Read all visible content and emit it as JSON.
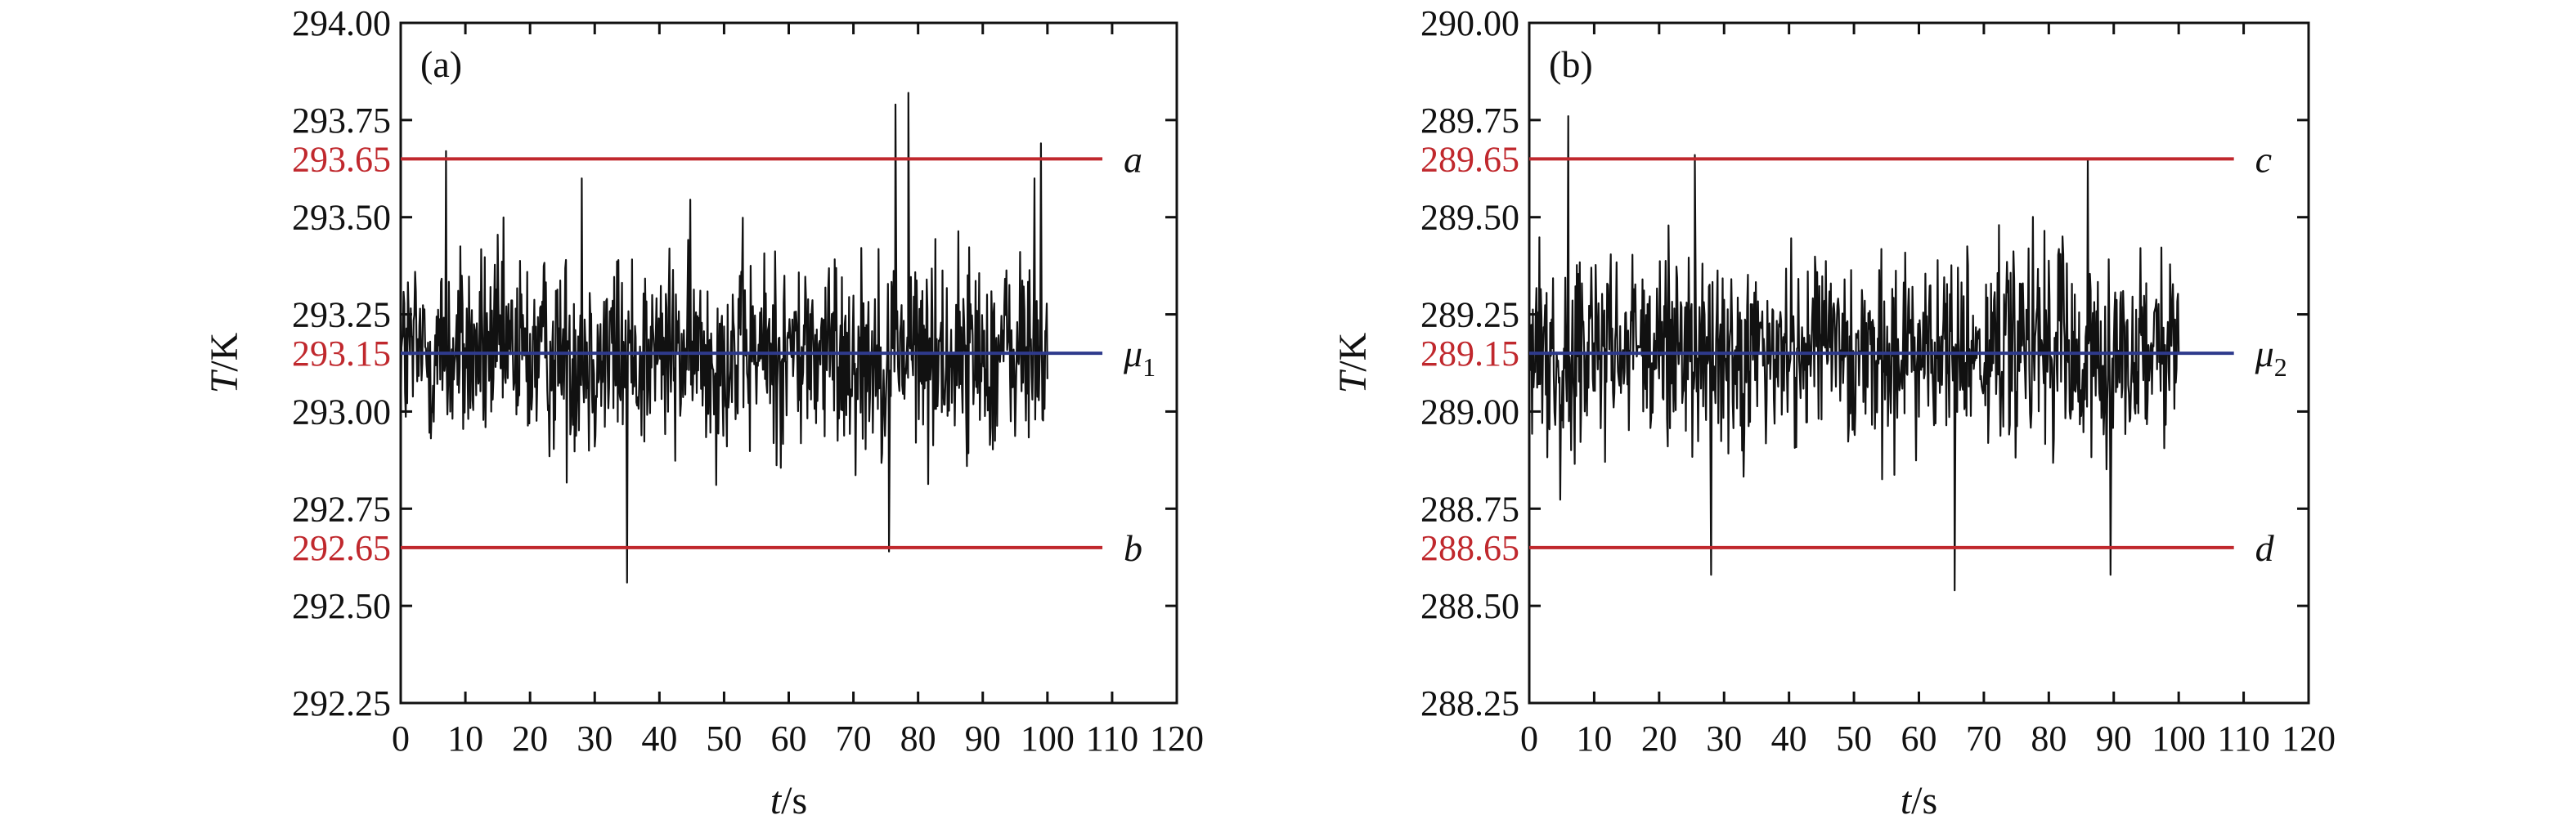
{
  "colors": {
    "signal": "#111111",
    "limit_line": "#c0282d",
    "mean_line": "#2e3a8c",
    "limit_label": "#c0282d"
  },
  "chart_data": [
    {
      "type": "line",
      "panel_label": "(a)",
      "xlabel_italic": "t",
      "xlabel_unit": "/s",
      "ylabel_italic": "T",
      "ylabel_unit": "/K",
      "xlim": [
        0,
        120
      ],
      "ylim": [
        292.25,
        294.0
      ],
      "x_ticks": [
        "0",
        "10",
        "20",
        "30",
        "40",
        "50",
        "60",
        "70",
        "80",
        "90",
        "100",
        "110",
        "120"
      ],
      "y_ticks": [
        "292.25",
        "292.50",
        "292.75",
        "293.00",
        "293.25",
        "293.50",
        "293.75",
        "294.00"
      ],
      "x_tick_values": [
        0,
        10,
        20,
        30,
        40,
        50,
        60,
        70,
        80,
        90,
        100,
        110,
        120
      ],
      "y_tick_values": [
        292.25,
        292.5,
        292.75,
        293.0,
        293.25,
        293.5,
        293.75,
        294.0
      ],
      "reference_lines": [
        {
          "tag": "a",
          "subscript": "",
          "value": 293.65,
          "label": "293.65",
          "kind": "limit"
        },
        {
          "tag": "μ",
          "subscript": "1",
          "value": 293.15,
          "label": "293.15",
          "kind": "mean"
        },
        {
          "tag": "b",
          "subscript": "",
          "value": 292.65,
          "label": "292.65",
          "kind": "limit"
        }
      ],
      "series": [
        {
          "x_range": [
            0,
            100
          ],
          "mean": 293.15,
          "spread": 0.13,
          "spikes": [
            {
              "x": 7,
              "y": 293.67
            },
            {
              "x": 28,
              "y": 293.6
            },
            {
              "x": 35,
              "y": 292.56
            },
            {
              "x": 75.5,
              "y": 292.64
            },
            {
              "x": 76.5,
              "y": 293.79
            },
            {
              "x": 78.5,
              "y": 293.82
            },
            {
              "x": 98,
              "y": 293.6
            },
            {
              "x": 99,
              "y": 293.69
            }
          ]
        }
      ]
    },
    {
      "type": "line",
      "panel_label": "(b)",
      "xlabel_italic": "t",
      "xlabel_unit": "/s",
      "ylabel_italic": "T",
      "ylabel_unit": "/K",
      "xlim": [
        0,
        120
      ],
      "ylim": [
        288.25,
        290.0
      ],
      "x_ticks": [
        "0",
        "10",
        "20",
        "30",
        "40",
        "50",
        "60",
        "70",
        "80",
        "90",
        "100",
        "110",
        "120"
      ],
      "y_ticks": [
        "288.25",
        "288.50",
        "288.75",
        "289.00",
        "289.25",
        "289.50",
        "289.75",
        "290.00"
      ],
      "x_tick_values": [
        0,
        10,
        20,
        30,
        40,
        50,
        60,
        70,
        80,
        90,
        100,
        110,
        120
      ],
      "y_tick_values": [
        288.25,
        288.5,
        288.75,
        289.0,
        289.25,
        289.5,
        289.75,
        290.0
      ],
      "reference_lines": [
        {
          "tag": "c",
          "subscript": "",
          "value": 289.65,
          "label": "289.65",
          "kind": "limit"
        },
        {
          "tag": "μ",
          "subscript": "2",
          "value": 289.15,
          "label": "289.15",
          "kind": "mean"
        },
        {
          "tag": "d",
          "subscript": "",
          "value": 288.65,
          "label": "288.65",
          "kind": "limit"
        }
      ],
      "series": [
        {
          "x_range": [
            0,
            100
          ],
          "mean": 289.15,
          "spread": 0.13,
          "spikes": [
            {
              "x": 6,
              "y": 289.76
            },
            {
              "x": 25.5,
              "y": 289.66
            },
            {
              "x": 28,
              "y": 288.58
            },
            {
              "x": 65.5,
              "y": 288.54
            },
            {
              "x": 86,
              "y": 289.65
            },
            {
              "x": 89.5,
              "y": 288.58
            }
          ]
        }
      ]
    }
  ]
}
